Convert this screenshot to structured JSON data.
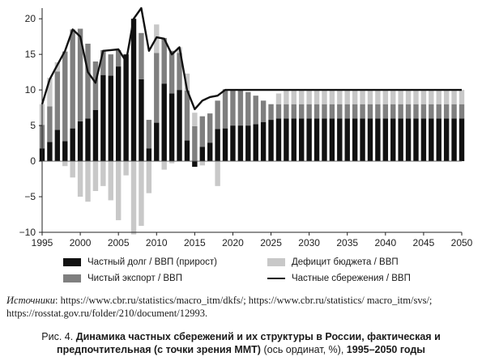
{
  "chart_data": {
    "type": "bar",
    "stacked": true,
    "x": [
      1995,
      1996,
      1997,
      1998,
      1999,
      2000,
      2001,
      2002,
      2003,
      2004,
      2005,
      2006,
      2007,
      2008,
      2009,
      2010,
      2011,
      2012,
      2013,
      2014,
      2015,
      2016,
      2017,
      2018,
      2019,
      2020,
      2021,
      2022,
      2023,
      2024,
      2025,
      2026,
      2027,
      2028,
      2029,
      2030,
      2031,
      2032,
      2033,
      2034,
      2035,
      2036,
      2037,
      2038,
      2039,
      2040,
      2041,
      2042,
      2043,
      2044,
      2045,
      2046,
      2047,
      2048,
      2049,
      2050
    ],
    "x_ticks": [
      "1995",
      "2000",
      "2005",
      "2010",
      "2015",
      "2020",
      "2025",
      "2030",
      "2035",
      "2040",
      "2045",
      "2050"
    ],
    "y_ticks": [
      "−10",
      "−5",
      "0",
      "5",
      "10",
      "15",
      "20"
    ],
    "ylim": [
      -10,
      21.5
    ],
    "series": [
      {
        "name": "Частный долг / ВВП (прирост)",
        "color": "#111111",
        "values": [
          1.8,
          2.7,
          4.4,
          2.8,
          4.6,
          5.6,
          6.0,
          7.2,
          12.1,
          12.0,
          13.3,
          15.0,
          20.0,
          11.5,
          1.8,
          5.4,
          10.9,
          9.5,
          10.0,
          2.9,
          -0.8,
          2.0,
          2.6,
          4.5,
          4.6,
          5.0,
          5.0,
          5.0,
          5.2,
          5.5,
          5.8,
          6,
          6,
          6,
          6,
          6,
          6,
          6,
          6,
          6,
          6,
          6,
          6,
          6,
          6,
          6,
          6,
          6,
          6,
          6,
          6,
          6,
          6,
          6,
          6,
          6
        ]
      },
      {
        "name": "Чистый экспорт / ВВП",
        "color": "#7f7f7f",
        "values": [
          3.3,
          5.0,
          8.2,
          12.6,
          13.9,
          13.0,
          10.5,
          6.8,
          3.5,
          3.0,
          2.3,
          0,
          0,
          6.5,
          4.0,
          9.8,
          6.4,
          6.0,
          5.2,
          7.0,
          4.9,
          4.3,
          4.1,
          4.0,
          5.5,
          4.9,
          4.9,
          4.7,
          4.0,
          3.0,
          2.2,
          2,
          2,
          2,
          2,
          2,
          2,
          2,
          2,
          2,
          2,
          2,
          2,
          2,
          2,
          2,
          2,
          2,
          2,
          2,
          2,
          2,
          2,
          2,
          2,
          2
        ]
      },
      {
        "name": "Дефицит бюджета / ВВП",
        "color": "#c8c8c8",
        "values": [
          2.9,
          4.0,
          1.3,
          -0.7,
          -2.3,
          -5.0,
          -5.7,
          -4.2,
          -3.5,
          -5.5,
          -8.3,
          -2.0,
          -10.3,
          -9.1,
          -4.5,
          4.0,
          -1.2,
          -0.3,
          0.8,
          2.4,
          1.9,
          -0.6,
          0,
          -3.5,
          0,
          0,
          0,
          0,
          0,
          0,
          0,
          1.5,
          2,
          2,
          2,
          2,
          2,
          2,
          2,
          2,
          2,
          2,
          2,
          2,
          2,
          2,
          2,
          2,
          2,
          2,
          2,
          2,
          2,
          2,
          2,
          2
        ]
      }
    ],
    "line": {
      "name": "Частные сбережения / ВВП",
      "color": "#111111",
      "values": [
        8.0,
        11.5,
        13.5,
        15.5,
        18.5,
        17.5,
        12.5,
        11.0,
        15.5,
        15.6,
        15.7,
        14.0,
        20.0,
        21.5,
        15.5,
        17.4,
        17.2,
        15.0,
        16.0,
        10.0,
        7.3,
        8.5,
        9.0,
        9.2,
        10.0,
        10,
        10,
        10,
        10,
        10,
        10,
        10,
        10,
        10,
        10,
        10,
        10,
        10,
        10,
        10,
        10,
        10,
        10,
        10,
        10,
        10,
        10,
        10,
        10,
        10,
        10,
        10,
        10,
        10,
        10,
        10
      ]
    },
    "legend_position": "bottom"
  },
  "sources": {
    "label": "Источники",
    "text": ":   https://www.cbr.ru/statistics/macro_itm/dkfs/;   https://www.cbr.ru/statistics/ macro_itm/svs/; https://rosstat.gov.ru/folder/210/document/12993."
  },
  "caption": {
    "prefix": "Рис. 4.",
    "bold_1": "Динамика частных сбережений и их структуры в России, фактическая и предпочтительная (с точки зрения ММТ)",
    "normal": "(ось ординат, %),",
    "bold_2": "1995–2050 годы"
  }
}
